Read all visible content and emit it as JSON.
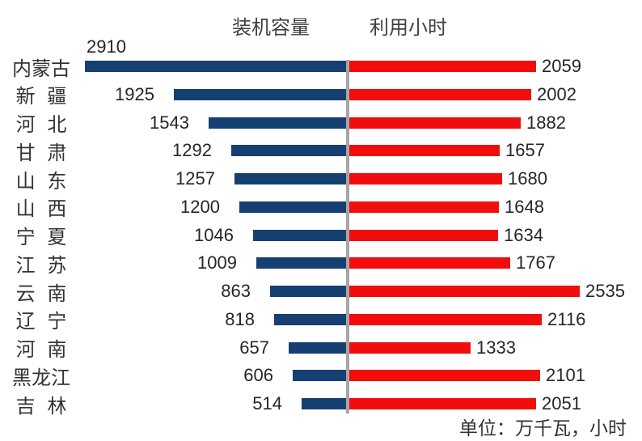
{
  "chart_data": {
    "type": "bar",
    "variant": "tornado",
    "orientation": "horizontal",
    "legend_position": "top-center",
    "grid": false,
    "categories": [
      "内蒙古",
      "新 疆",
      "河 北",
      "甘 肃",
      "山 东",
      "山 西",
      "宁 夏",
      "江 苏",
      "云 南",
      "辽 宁",
      "河 南",
      "黑龙江",
      "吉 林"
    ],
    "series": [
      {
        "name": "装机容量",
        "side": "left",
        "color": "#164071",
        "values": [
          2910,
          1925,
          1543,
          1292,
          1257,
          1200,
          1046,
          1009,
          863,
          818,
          657,
          606,
          514
        ]
      },
      {
        "name": "利用小时",
        "side": "right",
        "color": "#F20D0D",
        "values": [
          2059,
          2002,
          1882,
          1657,
          1680,
          1648,
          1634,
          1767,
          2535,
          2116,
          1333,
          2101,
          2051
        ]
      }
    ],
    "footnote": "单位：万千瓦，小时",
    "axis_color": "#A6A6A6",
    "label_color": "#262626"
  }
}
